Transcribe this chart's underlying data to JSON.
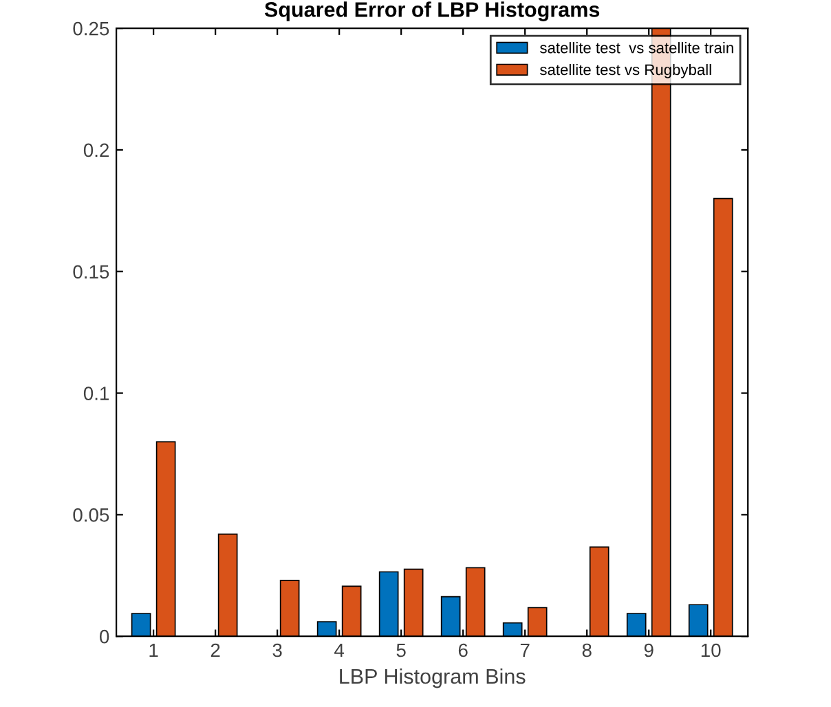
{
  "chart_data": {
    "type": "bar",
    "title": "Squared Error of LBP Histograms",
    "xlabel": "LBP Histogram Bins",
    "categories": [
      "1",
      "2",
      "3",
      "4",
      "5",
      "6",
      "7",
      "8",
      "9",
      "10"
    ],
    "series": [
      {
        "name": "satellite test  vs satellite train",
        "color": "#0072bd",
        "values": [
          0.0094,
          0,
          0,
          0.006,
          0.0265,
          0.0163,
          0.0055,
          0,
          0.0094,
          0.013
        ]
      },
      {
        "name": "satellite test vs Rugbyball",
        "color": "#d95319",
        "values": [
          0.08,
          0.042,
          0.023,
          0.0206,
          0.0276,
          0.0282,
          0.0118,
          0.0367,
          0.25,
          0.18
        ]
      }
    ],
    "ylim": [
      0,
      0.25
    ],
    "yticks": [
      0,
      0.05,
      0.1,
      0.15,
      0.2,
      0.25
    ],
    "grid": false,
    "legend": "top right"
  }
}
